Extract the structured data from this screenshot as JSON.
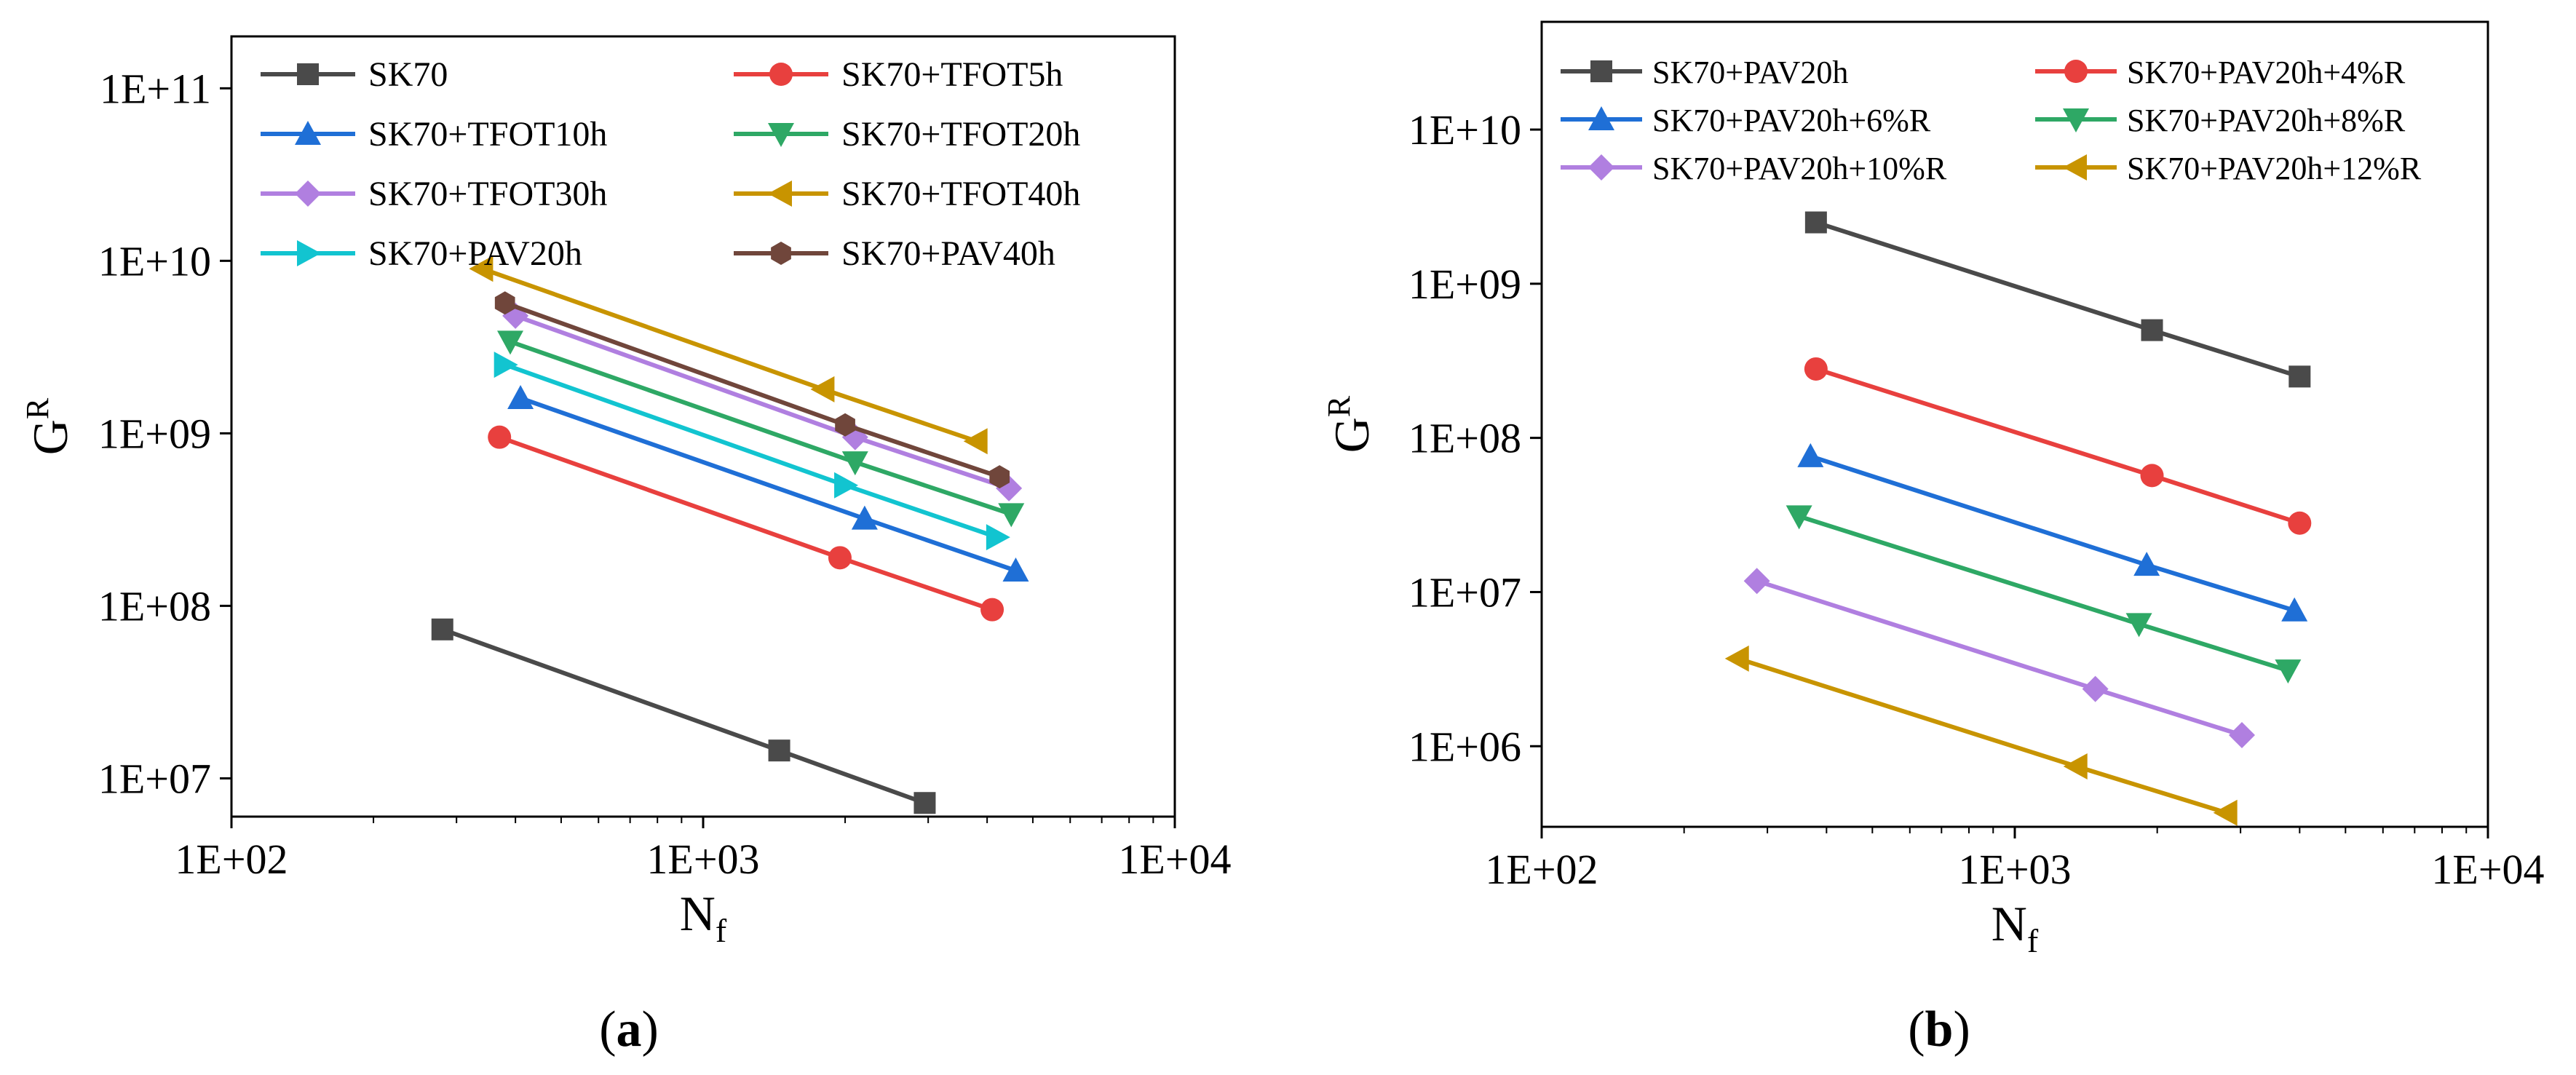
{
  "chart_data": [
    {
      "type": "line",
      "panel": "a",
      "caption_open": "(",
      "caption_letter": "a",
      "caption_close": ")",
      "xlabel": "N",
      "xlabel_sub": "f",
      "ylabel": "G",
      "ylabel_sup": "R",
      "xscale": "log",
      "yscale": "log",
      "xlim": [
        100,
        10000
      ],
      "ylim": [
        6000000,
        200000000000
      ],
      "xticks": [
        {
          "value": 100,
          "label": "1E+02"
        },
        {
          "value": 1000,
          "label": "1E+03"
        },
        {
          "value": 10000,
          "label": "1E+04"
        }
      ],
      "yticks": [
        {
          "value": 10000000,
          "label": "1E+07"
        },
        {
          "value": 100000000,
          "label": "1E+08"
        },
        {
          "value": 1000000000,
          "label": "1E+09"
        },
        {
          "value": 10000000000,
          "label": "1E+10"
        },
        {
          "value": 100000000000,
          "label": "1E+11"
        }
      ],
      "legend_position": "top",
      "grid": false,
      "series": [
        {
          "name": "SK70",
          "color": "#4a4a4a",
          "marker": "square",
          "x": [
            280,
            1450,
            2950
          ],
          "y": [
            73000000,
            14500000,
            7200000
          ]
        },
        {
          "name": "SK70+TFOT5h",
          "color": "#e8403e",
          "marker": "circle",
          "x": [
            370,
            1950,
            4100
          ],
          "y": [
            950000000,
            190000000,
            95000000
          ]
        },
        {
          "name": "SK70+TFOT10h",
          "color": "#1f6fd6",
          "marker": "triangle-up",
          "x": [
            410,
            2200,
            4600
          ],
          "y": [
            1600000000,
            320000000,
            160000000
          ]
        },
        {
          "name": "SK70+TFOT20h",
          "color": "#2ea865",
          "marker": "triangle-down",
          "x": [
            390,
            2100,
            4500
          ],
          "y": [
            3400000000,
            680000000,
            340000000
          ]
        },
        {
          "name": "SK70+TFOT30h",
          "color": "#b07fe0",
          "marker": "diamond",
          "x": [
            400,
            2100,
            4450
          ],
          "y": [
            4800000000,
            950000000,
            480000000
          ]
        },
        {
          "name": "SK70+TFOT40h",
          "color": "#c89400",
          "marker": "triangle-left",
          "x": [
            340,
            1800,
            3800
          ],
          "y": [
            9000000000,
            1800000000,
            900000000
          ]
        },
        {
          "name": "SK70+PAV20h",
          "color": "#12c4d0",
          "marker": "triangle-right",
          "x": [
            380,
            2000,
            4200
          ],
          "y": [
            2500000000,
            500000000,
            250000000
          ]
        },
        {
          "name": "SK70+PAV40h",
          "color": "#70463b",
          "marker": "hexagon",
          "x": [
            380,
            2000,
            4250
          ],
          "y": [
            5700000000,
            1120000000,
            560000000
          ]
        }
      ]
    },
    {
      "type": "line",
      "panel": "b",
      "caption_open": "(",
      "caption_letter": "b",
      "caption_close": ")",
      "xlabel": "N",
      "xlabel_sub": "f",
      "ylabel": "G",
      "ylabel_sup": "R",
      "xscale": "log",
      "yscale": "log",
      "xlim": [
        100,
        10000
      ],
      "ylim": [
        300000,
        50000000000
      ],
      "xticks": [
        {
          "value": 100,
          "label": "1E+02"
        },
        {
          "value": 1000,
          "label": "1E+03"
        },
        {
          "value": 10000,
          "label": "1E+04"
        }
      ],
      "yticks": [
        {
          "value": 1000000,
          "label": "1E+06"
        },
        {
          "value": 10000000,
          "label": "1E+07"
        },
        {
          "value": 100000000,
          "label": "1E+08"
        },
        {
          "value": 1000000000,
          "label": "1E+09"
        },
        {
          "value": 10000000000,
          "label": "1E+10"
        }
      ],
      "legend_position": "top",
      "grid": false,
      "series": [
        {
          "name": "SK70+PAV20h",
          "color": "#4a4a4a",
          "marker": "square",
          "x": [
            380,
            1950,
            4000
          ],
          "y": [
            2500000000,
            500000000,
            250000000
          ]
        },
        {
          "name": "SK70+PAV20h+4%R",
          "color": "#e8403e",
          "marker": "circle",
          "x": [
            380,
            1950,
            4000
          ],
          "y": [
            280000000,
            57000000,
            28000000
          ]
        },
        {
          "name": "SK70+PAV20h+6%R",
          "color": "#1f6fd6",
          "marker": "triangle-up",
          "x": [
            370,
            1900,
            3900
          ],
          "y": [
            76000000,
            15000000,
            7600000
          ]
        },
        {
          "name": "SK70+PAV20h+8%R",
          "color": "#2ea865",
          "marker": "triangle-down",
          "x": [
            350,
            1830,
            3780
          ],
          "y": [
            31000000,
            6200000,
            3100000
          ]
        },
        {
          "name": "SK70+PAV20h+10%R",
          "color": "#b07fe0",
          "marker": "diamond",
          "x": [
            285,
            1480,
            3020
          ],
          "y": [
            11800000,
            2350000,
            1180000
          ]
        },
        {
          "name": "SK70+PAV20h+12%R",
          "color": "#c89400",
          "marker": "triangle-left",
          "x": [
            260,
            1350,
            2800
          ],
          "y": [
            3700000,
            740000,
            370000
          ]
        }
      ]
    }
  ]
}
